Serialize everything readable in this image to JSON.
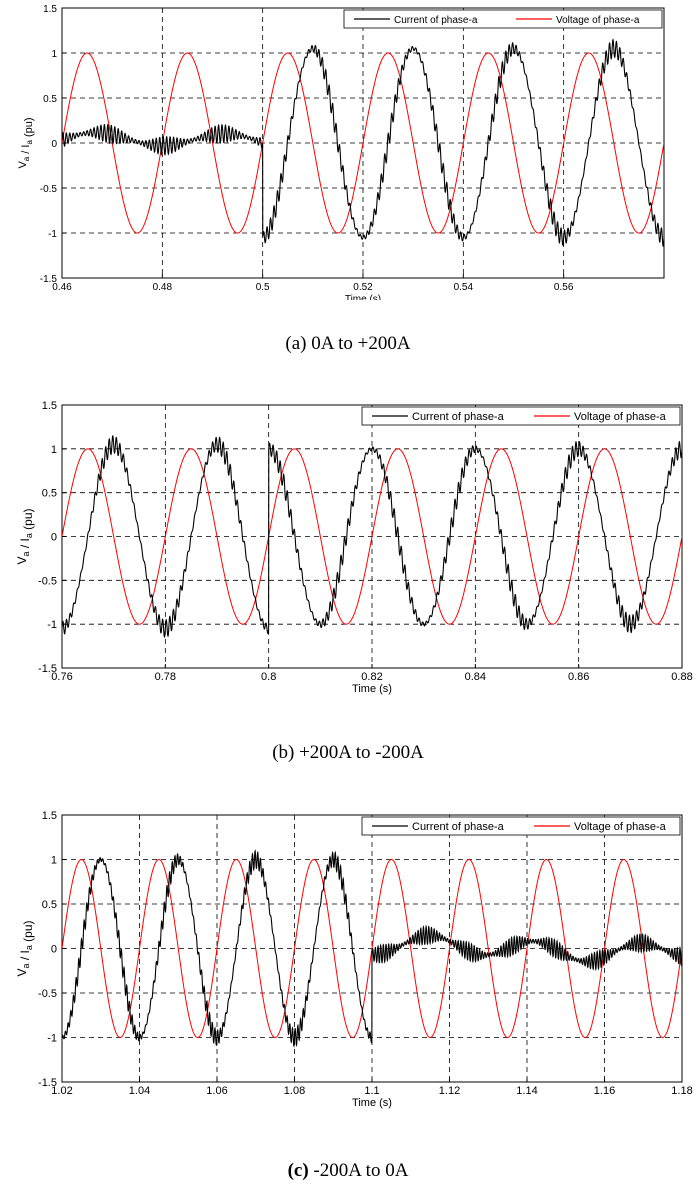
{
  "figure": {
    "captions": [
      {
        "label": "",
        "text": "(a) 0A to +200A"
      },
      {
        "label": "",
        "text": "(b) +200A to -200A"
      },
      {
        "label": "(c)",
        "text": " -200A to 0A"
      }
    ]
  },
  "chart_data": [
    {
      "type": "line",
      "title": "",
      "xlabel": "Time (s)",
      "ylabel": "V_a / I_a (pu)",
      "xlim": [
        0.46,
        0.58
      ],
      "ylim": [
        -1.5,
        1.5
      ],
      "xticks": [
        0.46,
        0.48,
        0.5,
        0.52,
        0.54,
        0.56
      ],
      "yticks": [
        -1.5,
        -1,
        -0.5,
        0,
        0.5,
        1,
        1.5
      ],
      "grid": true,
      "legend_position": "top-right",
      "transition_time": 0.5,
      "series": [
        {
          "name": "Current of phase-a",
          "color": "#000000",
          "before_amplitude": 0.08,
          "after_amplitude": 1.05,
          "ripple": 0.1
        },
        {
          "name": "Voltage of phase-a",
          "color": "#ff0000",
          "amplitude": 1.0,
          "frequency_hz": 50
        }
      ]
    },
    {
      "type": "line",
      "title": "",
      "xlabel": "Time (s)",
      "ylabel": "V_a / I_a (pu)",
      "xlim": [
        0.76,
        0.88
      ],
      "ylim": [
        -1.5,
        1.5
      ],
      "xticks": [
        0.76,
        0.78,
        0.8,
        0.82,
        0.84,
        0.86,
        0.88
      ],
      "yticks": [
        -1.5,
        -1,
        -0.5,
        0,
        0.5,
        1,
        1.5
      ],
      "grid": true,
      "legend_position": "top-right",
      "transition_time": 0.8,
      "series": [
        {
          "name": "Current of phase-a",
          "color": "#000000",
          "before_amplitude": 1.05,
          "after_amplitude": 1.0,
          "ripple": 0.1
        },
        {
          "name": "Voltage of phase-a",
          "color": "#ff0000",
          "amplitude": 1.0,
          "frequency_hz": 50
        }
      ]
    },
    {
      "type": "line",
      "title": "",
      "xlabel": "Time (s)",
      "ylabel": "V_a / I_a (pu)",
      "xlim": [
        1.02,
        1.18
      ],
      "ylim": [
        -1.5,
        1.5
      ],
      "xticks": [
        1.02,
        1.04,
        1.06,
        1.08,
        1.1,
        1.12,
        1.14,
        1.16,
        1.18
      ],
      "yticks": [
        -1.5,
        -1,
        -0.5,
        0,
        0.5,
        1,
        1.5
      ],
      "grid": true,
      "legend_position": "top-right",
      "transition_time": 1.1,
      "series": [
        {
          "name": "Current of phase-a",
          "color": "#000000",
          "before_amplitude": 1.0,
          "after_amplitude": 0.1,
          "ripple": 0.1
        },
        {
          "name": "Voltage of phase-a",
          "color": "#ff0000",
          "amplitude": 1.0,
          "frequency_hz": 50
        }
      ]
    }
  ]
}
